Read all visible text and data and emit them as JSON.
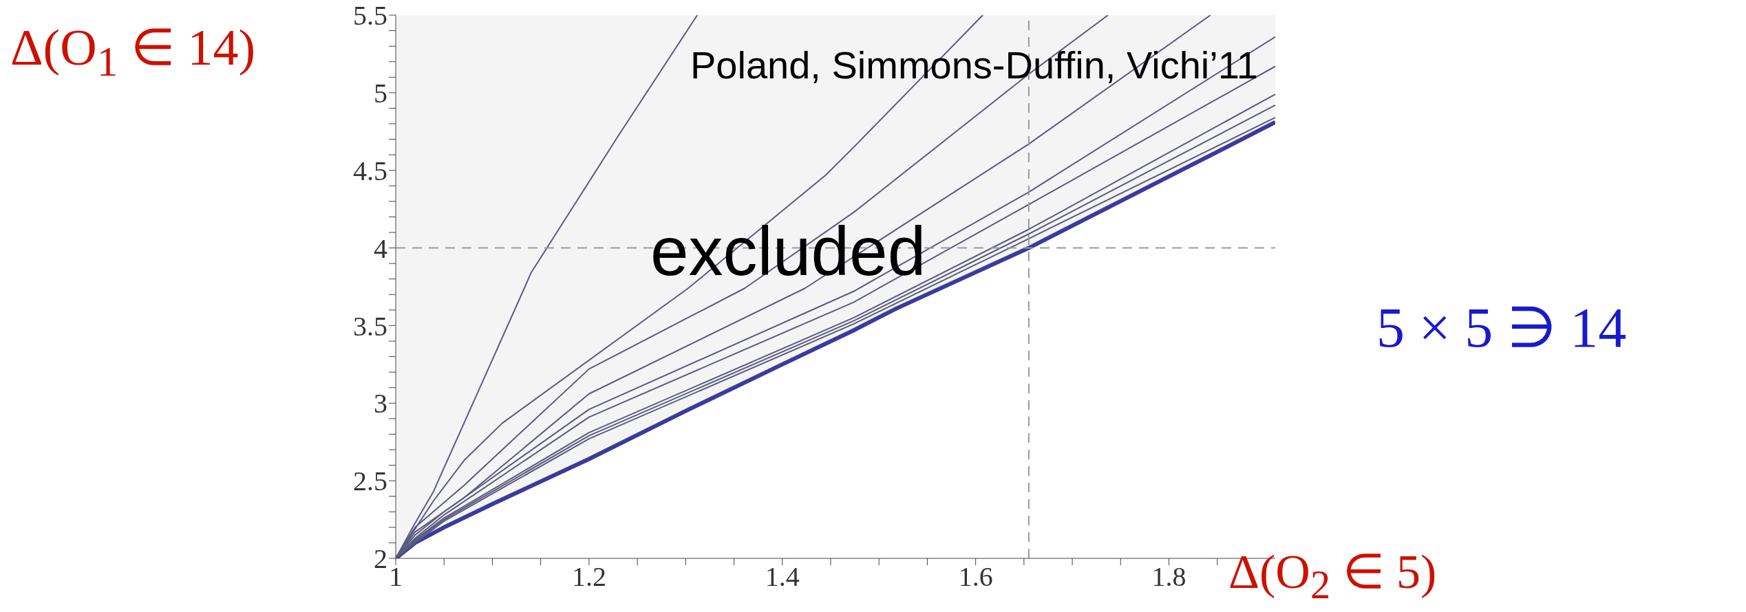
{
  "chart_data": {
    "type": "line",
    "xlabel": "Δ(O$_{2}$ ∈ 5)",
    "ylabel": "Δ(O$_{1}$ ∈ 14)",
    "annotations": [
      "Poland, Simmons-Duffin, Vichi’11",
      "excluded",
      "5 × 5 ∋ 14"
    ],
    "xlim": [
      1,
      1.91
    ],
    "xticks": [
      1,
      {
        "value": 1.05,
        "label": null
      },
      {
        "value": 1.1,
        "label": null
      },
      {
        "value": 1.15,
        "label": null
      },
      1.2,
      {
        "value": 1.25,
        "label": null
      },
      {
        "value": 1.3,
        "label": null
      },
      {
        "value": 1.35,
        "label": null
      },
      1.4,
      {
        "value": 1.45,
        "label": null
      },
      {
        "value": 1.5,
        "label": null
      },
      {
        "value": 1.55,
        "label": null
      },
      1.6,
      {
        "value": 1.65,
        "label": null
      },
      {
        "value": 1.7,
        "label": null
      },
      {
        "value": 1.75,
        "label": null
      },
      1.8,
      {
        "value": 1.85,
        "label": null
      }
    ],
    "ylim": [
      2,
      5.5
    ],
    "yticks": [
      2,
      {
        "value": 2.1,
        "label": null
      },
      {
        "value": 2.2,
        "label": null
      },
      {
        "value": 2.3,
        "label": null
      },
      {
        "value": 2.4,
        "label": null
      },
      2.5,
      {
        "value": 2.6,
        "label": null
      },
      {
        "value": 2.7,
        "label": null
      },
      {
        "value": 2.8,
        "label": null
      },
      {
        "value": 2.9,
        "label": null
      },
      3,
      {
        "value": 3.1,
        "label": null
      },
      {
        "value": 3.2,
        "label": null
      },
      {
        "value": 3.3,
        "label": null
      },
      {
        "value": 3.4,
        "label": null
      },
      3.5,
      {
        "value": 3.6,
        "label": null
      },
      {
        "value": 3.7,
        "label": null
      },
      {
        "value": 3.8,
        "label": null
      },
      {
        "value": 3.9,
        "label": null
      },
      4,
      {
        "value": 4.1,
        "label": null
      },
      {
        "value": 4.2,
        "label": null
      },
      {
        "value": 4.3,
        "label": null
      },
      {
        "value": 4.4,
        "label": null
      },
      4.5,
      {
        "value": 4.6,
        "label": null
      },
      {
        "value": 4.7,
        "label": null
      },
      {
        "value": 4.8,
        "label": null
      },
      {
        "value": 4.9,
        "label": null
      },
      5,
      {
        "value": 5.1,
        "label": null
      },
      {
        "value": 5.2,
        "label": null
      },
      {
        "value": 5.3,
        "label": null
      },
      {
        "value": 5.4,
        "label": null
      },
      5.5
    ],
    "ref_lines": [
      {
        "axis": "x",
        "value": 1.655,
        "color": "#999999",
        "line_style": "dashed"
      },
      {
        "axis": "y",
        "value": 4,
        "color": "#999999",
        "line_style": "dashed"
      }
    ],
    "series": [
      {
        "type": "area",
        "color": "#3b3b9c",
        "x": [
          1,
          1.02,
          1.05,
          1.1,
          1.2,
          1.3,
          1.4,
          1.474,
          1.518,
          1.655,
          1.91
        ],
        "values": [
          2,
          2.1,
          2.2,
          2.35,
          2.64,
          2.95,
          3.25,
          3.47,
          3.61,
          4.0,
          4.81
        ]
      },
      {
        "color": "#5a5a80",
        "x": [
          1,
          1.0185,
          1.039,
          1.133,
          1.14,
          1.229,
          1.312
        ],
        "values": [
          2,
          2.21,
          2.43,
          3.74,
          3.84,
          4.71,
          5.5
        ]
      },
      {
        "color": "#5a5a80",
        "x": [
          1,
          1.039,
          1.0706,
          1.11,
          1.3025,
          1.445,
          1.474,
          1.6074
        ],
        "values": [
          2,
          2.37,
          2.63,
          2.87,
          3.74,
          4.47,
          4.65,
          5.5
        ]
      },
      {
        "color": "#5a5a80",
        "x": [
          1,
          1.02,
          1.0706,
          1.2,
          1.361,
          1.474,
          1.655,
          1.737
        ],
        "values": [
          2,
          2.2,
          2.47,
          3.22,
          3.74,
          4.23,
          5.12,
          5.5
        ]
      },
      {
        "color": "#5a5a80",
        "x": [
          1,
          1.02,
          1.0706,
          1.2,
          1.4234,
          1.655,
          1.843
        ],
        "values": [
          2,
          2.17,
          2.39,
          3.06,
          3.74,
          4.67,
          5.5
        ]
      },
      {
        "color": "#5a5a80",
        "x": [
          1,
          1.02,
          1.05,
          1.2,
          1.4737,
          1.655,
          1.91
        ],
        "values": [
          2,
          2.15,
          2.3,
          2.96,
          3.72,
          4.36,
          5.36
        ]
      },
      {
        "color": "#5a5a80",
        "x": [
          1,
          1.02,
          1.05,
          1.2,
          1.4737,
          1.655,
          1.91
        ],
        "values": [
          2,
          2.13,
          2.28,
          2.91,
          3.65,
          4.28,
          5.17
        ]
      },
      {
        "color": "#5a5a80",
        "x": [
          1,
          1.02,
          1.05,
          1.2,
          1.4737,
          1.655,
          1.91
        ],
        "values": [
          2,
          2.12,
          2.26,
          2.81,
          3.55,
          4.12,
          4.99
        ]
      },
      {
        "color": "#5a5a80",
        "x": [
          1,
          1.02,
          1.05,
          1.2,
          1.4737,
          1.655,
          1.91
        ],
        "values": [
          2,
          2.11,
          2.25,
          2.79,
          3.53,
          4.09,
          4.92
        ]
      },
      {
        "color": "#5a5a80",
        "x": [
          1,
          1.02,
          1.05,
          1.2,
          1.4737,
          1.655,
          1.91
        ],
        "values": [
          2,
          2.1,
          2.24,
          2.77,
          3.51,
          4.06,
          4.84
        ]
      }
    ]
  }
}
